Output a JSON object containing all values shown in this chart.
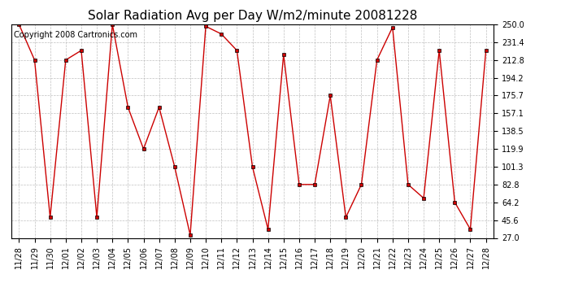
{
  "title": "Solar Radiation Avg per Day W/m2/minute 20081228",
  "copyright": "Copyright 2008 Cartronics.com",
  "labels": [
    "11/28",
    "11/29",
    "11/30",
    "12/01",
    "12/02",
    "12/03",
    "12/04",
    "12/05",
    "12/06",
    "12/07",
    "12/08",
    "12/09",
    "12/10",
    "12/11",
    "12/12",
    "12/13",
    "12/14",
    "12/15",
    "12/16",
    "12/17",
    "12/18",
    "12/19",
    "12/20",
    "12/21",
    "12/22",
    "12/23",
    "12/24",
    "12/25",
    "12/26",
    "12/27",
    "12/28"
  ],
  "values": [
    250.0,
    212.8,
    48.5,
    212.8,
    222.8,
    48.5,
    250.0,
    163.5,
    119.9,
    163.5,
    101.3,
    30.0,
    248.0,
    240.0,
    222.8,
    101.3,
    36.0,
    218.5,
    82.8,
    82.8,
    175.7,
    48.5,
    82.8,
    212.8,
    247.0,
    82.8,
    68.5,
    222.8,
    64.2,
    36.0,
    222.8
  ],
  "yticks": [
    27.0,
    45.6,
    64.2,
    82.8,
    101.3,
    119.9,
    138.5,
    157.1,
    175.7,
    194.2,
    212.8,
    231.4,
    250.0
  ],
  "ymin": 27.0,
  "ymax": 250.0,
  "line_color": "#cc0000",
  "marker": "s",
  "marker_size": 2.5,
  "bg_color": "#ffffff",
  "grid_color": "#b0b0b0",
  "title_fontsize": 11,
  "copyright_fontsize": 7,
  "tick_fontsize": 7
}
